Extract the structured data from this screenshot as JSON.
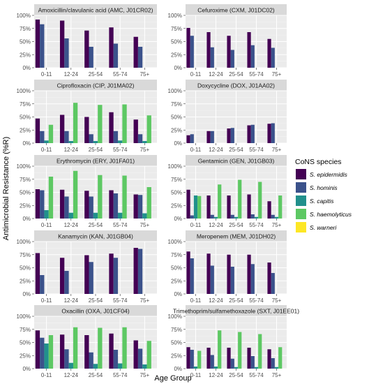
{
  "chart_data": {
    "type": "bar",
    "ylabel": "Antimicrobial Resistance (%R)",
    "xlabel": "Age Group",
    "categories": [
      "0-11",
      "12-24",
      "25-54",
      "55-74",
      "75+"
    ],
    "y_ticks": [
      "0%",
      "25%",
      "50%",
      "75%",
      "100%"
    ],
    "ylim": [
      0,
      100
    ],
    "grid": true,
    "legend": {
      "title": "CoNS species",
      "placement": "right",
      "entries": [
        "S. epidermidis",
        "S. hominis",
        "S. capitis",
        "S. haemolyticus",
        "S. warneri"
      ]
    },
    "series_colors": [
      "#440154",
      "#3B528B",
      "#21908C",
      "#5DC863",
      "#FDE725"
    ],
    "facets": [
      {
        "title": "Amoxicillin/clavulanic acid (AMC, J01CR02)",
        "series": [
          [
            92,
            90,
            71,
            77,
            59
          ],
          [
            83,
            56,
            40,
            46,
            40
          ],
          [
            0,
            0,
            0,
            0,
            0
          ],
          [
            0,
            0,
            0,
            0,
            0
          ],
          [
            0,
            0,
            0,
            0,
            0
          ]
        ]
      },
      {
        "title": "Cefuroxime (CXM, J01DC02)",
        "series": [
          [
            76,
            68,
            61,
            68,
            55
          ],
          [
            61,
            39,
            34,
            43,
            38
          ],
          [
            0,
            0,
            0,
            0,
            0
          ],
          [
            0,
            0,
            0,
            0,
            0
          ],
          [
            0,
            0,
            0,
            0,
            0
          ]
        ]
      },
      {
        "title": "Ciprofloxacin (CIP, J01MA02)",
        "series": [
          [
            47,
            54,
            50,
            59,
            45
          ],
          [
            23,
            23,
            17,
            23,
            17
          ],
          [
            5,
            4,
            4,
            5,
            4
          ],
          [
            35,
            77,
            73,
            74,
            53
          ],
          [
            0,
            0,
            0,
            0,
            0
          ]
        ]
      },
      {
        "title": "Doxycycline (DOX, J01AA02)",
        "series": [
          [
            15,
            23,
            28,
            34,
            37
          ],
          [
            17,
            23,
            29,
            35,
            38
          ],
          [
            0,
            0,
            0,
            0,
            0
          ],
          [
            0,
            0,
            0,
            0,
            0
          ],
          [
            0,
            0,
            0,
            0,
            0
          ]
        ]
      },
      {
        "title": "Erythromycin (ERY, J01FA01)",
        "series": [
          [
            56,
            55,
            53,
            54,
            46
          ],
          [
            54,
            42,
            42,
            48,
            45
          ],
          [
            16,
            11,
            11,
            11,
            10
          ],
          [
            80,
            91,
            83,
            82,
            60
          ],
          [
            0,
            0,
            0,
            0,
            0
          ]
        ]
      },
      {
        "title": "Gentamicin (GEN, J01GB03)",
        "series": [
          [
            55,
            44,
            44,
            46,
            33
          ],
          [
            6,
            7,
            7,
            8,
            7
          ],
          [
            44,
            3,
            3,
            3,
            3
          ],
          [
            43,
            65,
            74,
            70,
            44
          ],
          [
            0,
            0,
            0,
            0,
            0
          ]
        ]
      },
      {
        "title": "Kanamycin (KAN, J01GB04)",
        "series": [
          [
            78,
            69,
            74,
            77,
            88
          ],
          [
            36,
            44,
            61,
            69,
            86
          ],
          [
            0,
            0,
            0,
            0,
            0
          ],
          [
            0,
            0,
            0,
            0,
            0
          ],
          [
            0,
            0,
            0,
            0,
            0
          ]
        ]
      },
      {
        "title": "Meropenem (MEM, J01DH02)",
        "series": [
          [
            81,
            77,
            75,
            75,
            60
          ],
          [
            68,
            54,
            52,
            57,
            40
          ],
          [
            0,
            0,
            0,
            0,
            0
          ],
          [
            0,
            0,
            0,
            0,
            0
          ],
          [
            0,
            0,
            0,
            0,
            0
          ]
        ]
      },
      {
        "title": "Oxacillin (OXA, J01CF04)",
        "series": [
          [
            73,
            65,
            64,
            67,
            54
          ],
          [
            59,
            37,
            31,
            36,
            38
          ],
          [
            48,
            11,
            9,
            10,
            8
          ],
          [
            64,
            79,
            78,
            79,
            53
          ],
          [
            0,
            0,
            0,
            0,
            0
          ]
        ]
      },
      {
        "title": "Trimethoprim/sulfamethoxazole (SXT, J01EE01)",
        "series": [
          [
            41,
            40,
            40,
            40,
            37
          ],
          [
            36,
            26,
            19,
            24,
            20
          ],
          [
            4,
            4,
            3,
            3,
            3
          ],
          [
            34,
            73,
            70,
            66,
            41
          ],
          [
            0,
            0,
            0,
            0,
            0
          ]
        ]
      }
    ]
  }
}
